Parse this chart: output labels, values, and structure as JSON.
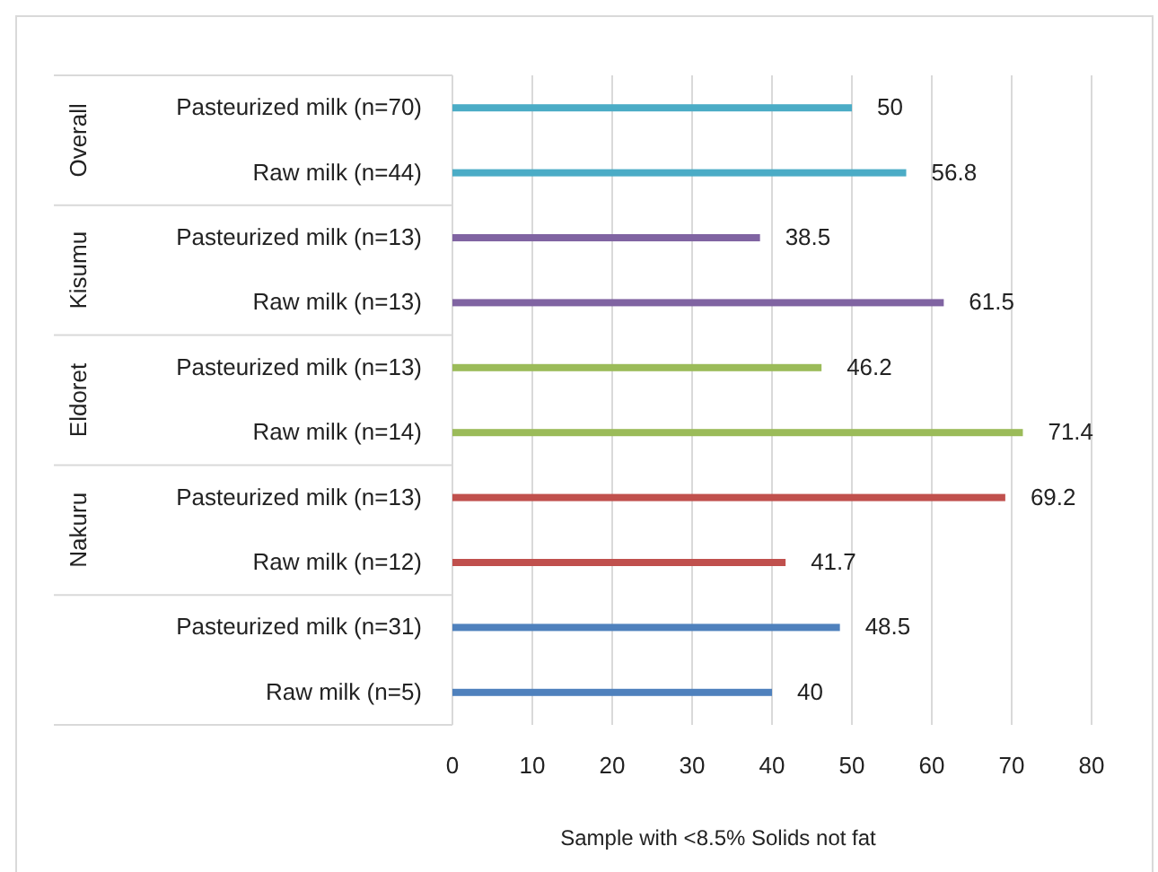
{
  "chart_data": {
    "type": "bar",
    "orientation": "horizontal",
    "xlabel": "Sample with <8.5% Solids not fat",
    "categories": [
      "Pasteurized milk (n=70)",
      "Raw milk (n=44)",
      "Pasteurized milk (n=13)",
      "Raw milk (n=13)",
      "Pasteurized milk (n=13)",
      "Raw milk (n=14)",
      "Pasteurized milk (n=13)",
      "Raw milk (n=12)",
      "Pasteurized milk (n=31)",
      "Raw milk (n=5)"
    ],
    "values": [
      50,
      56.8,
      38.5,
      61.5,
      46.2,
      71.4,
      69.2,
      41.7,
      48.5,
      40
    ],
    "colors": [
      "#4bacc6",
      "#4bacc6",
      "#8064a2",
      "#8064a2",
      "#9bbb59",
      "#9bbb59",
      "#c0504d",
      "#c0504d",
      "#4f81bd",
      "#4f81bd"
    ],
    "annotations": [
      "Overall",
      "Kisumu",
      "Eldoret",
      "Nakuru"
    ],
    "xlim": [
      0,
      80
    ],
    "xticks": [
      0,
      10,
      20,
      30,
      40,
      50,
      60,
      70,
      80
    ],
    "grid": "x",
    "data_labels": true
  }
}
